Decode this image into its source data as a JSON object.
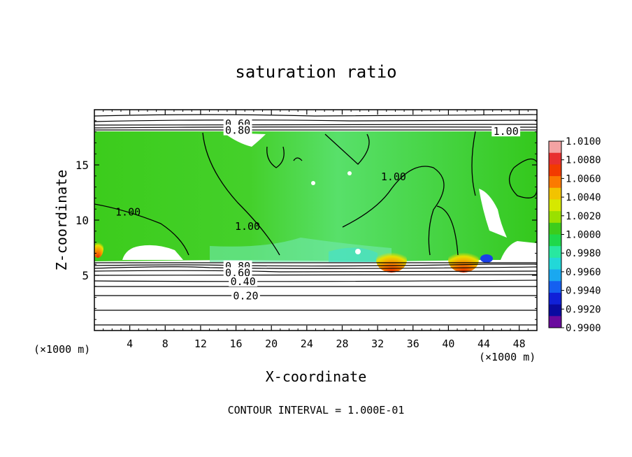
{
  "chart_data": {
    "type": "heatmap",
    "title": "saturation ratio",
    "xlabel": "X-coordinate",
    "ylabel": "Z-coordinate",
    "x_unit_left": "(×1000 m)",
    "x_unit_right": "(×1000 m)",
    "footer": "CONTOUR INTERVAL = 1.000E-01",
    "xlim": [
      0,
      50
    ],
    "ylim": [
      0,
      20
    ],
    "x_ticks": [
      4,
      8,
      12,
      16,
      20,
      24,
      28,
      32,
      36,
      40,
      44,
      48
    ],
    "x_tick_labels": [
      "4",
      "8",
      "12",
      "16",
      "20",
      "24",
      "28",
      "32",
      "36",
      "40",
      "44",
      "48"
    ],
    "y_ticks": [
      5,
      10,
      15
    ],
    "y_tick_labels": [
      "5",
      "10",
      "15"
    ],
    "colorbar": {
      "min": 0.99,
      "max": 1.01,
      "labels": [
        "1.0100",
        "1.0080",
        "1.0060",
        "1.0040",
        "1.0020",
        "1.0000",
        "0.9980",
        "0.9960",
        "0.9940",
        "0.9920",
        "0.9900"
      ],
      "colors": [
        "#f4a3a3",
        "#e83030",
        "#f23b00",
        "#fb7a00",
        "#f2c300",
        "#d6e800",
        "#9ae000",
        "#3ccc1c",
        "#1fd84a",
        "#28e8a0",
        "#22d8d8",
        "#1aa8f0",
        "#1560f0",
        "#1020d8",
        "#0a0aa0",
        "#6a0a9e"
      ]
    },
    "contour_labels": [
      {
        "text": "0.60",
        "x": 16.2,
        "z": 18.6
      },
      {
        "text": "0.80",
        "x": 16.2,
        "z": 18.0
      },
      {
        "text": "1.00",
        "x": 46.5,
        "z": 17.9
      },
      {
        "text": "1.00",
        "x": 33.8,
        "z": 13.8
      },
      {
        "text": "1.00",
        "x": 3.8,
        "z": 10.6
      },
      {
        "text": "1.00",
        "x": 17.3,
        "z": 9.3
      },
      {
        "text": "0.80",
        "x": 16.2,
        "z": 5.7
      },
      {
        "text": "0.60",
        "x": 16.2,
        "z": 5.1
      },
      {
        "text": "0.40",
        "x": 16.8,
        "z": 4.3
      },
      {
        "text": "0.20",
        "x": 17.1,
        "z": 3.0
      }
    ],
    "contour_levels": [
      0.2,
      0.3,
      0.4,
      0.5,
      0.6,
      0.7,
      0.8,
      0.9,
      1.0
    ],
    "grid": false,
    "legend": "right"
  }
}
